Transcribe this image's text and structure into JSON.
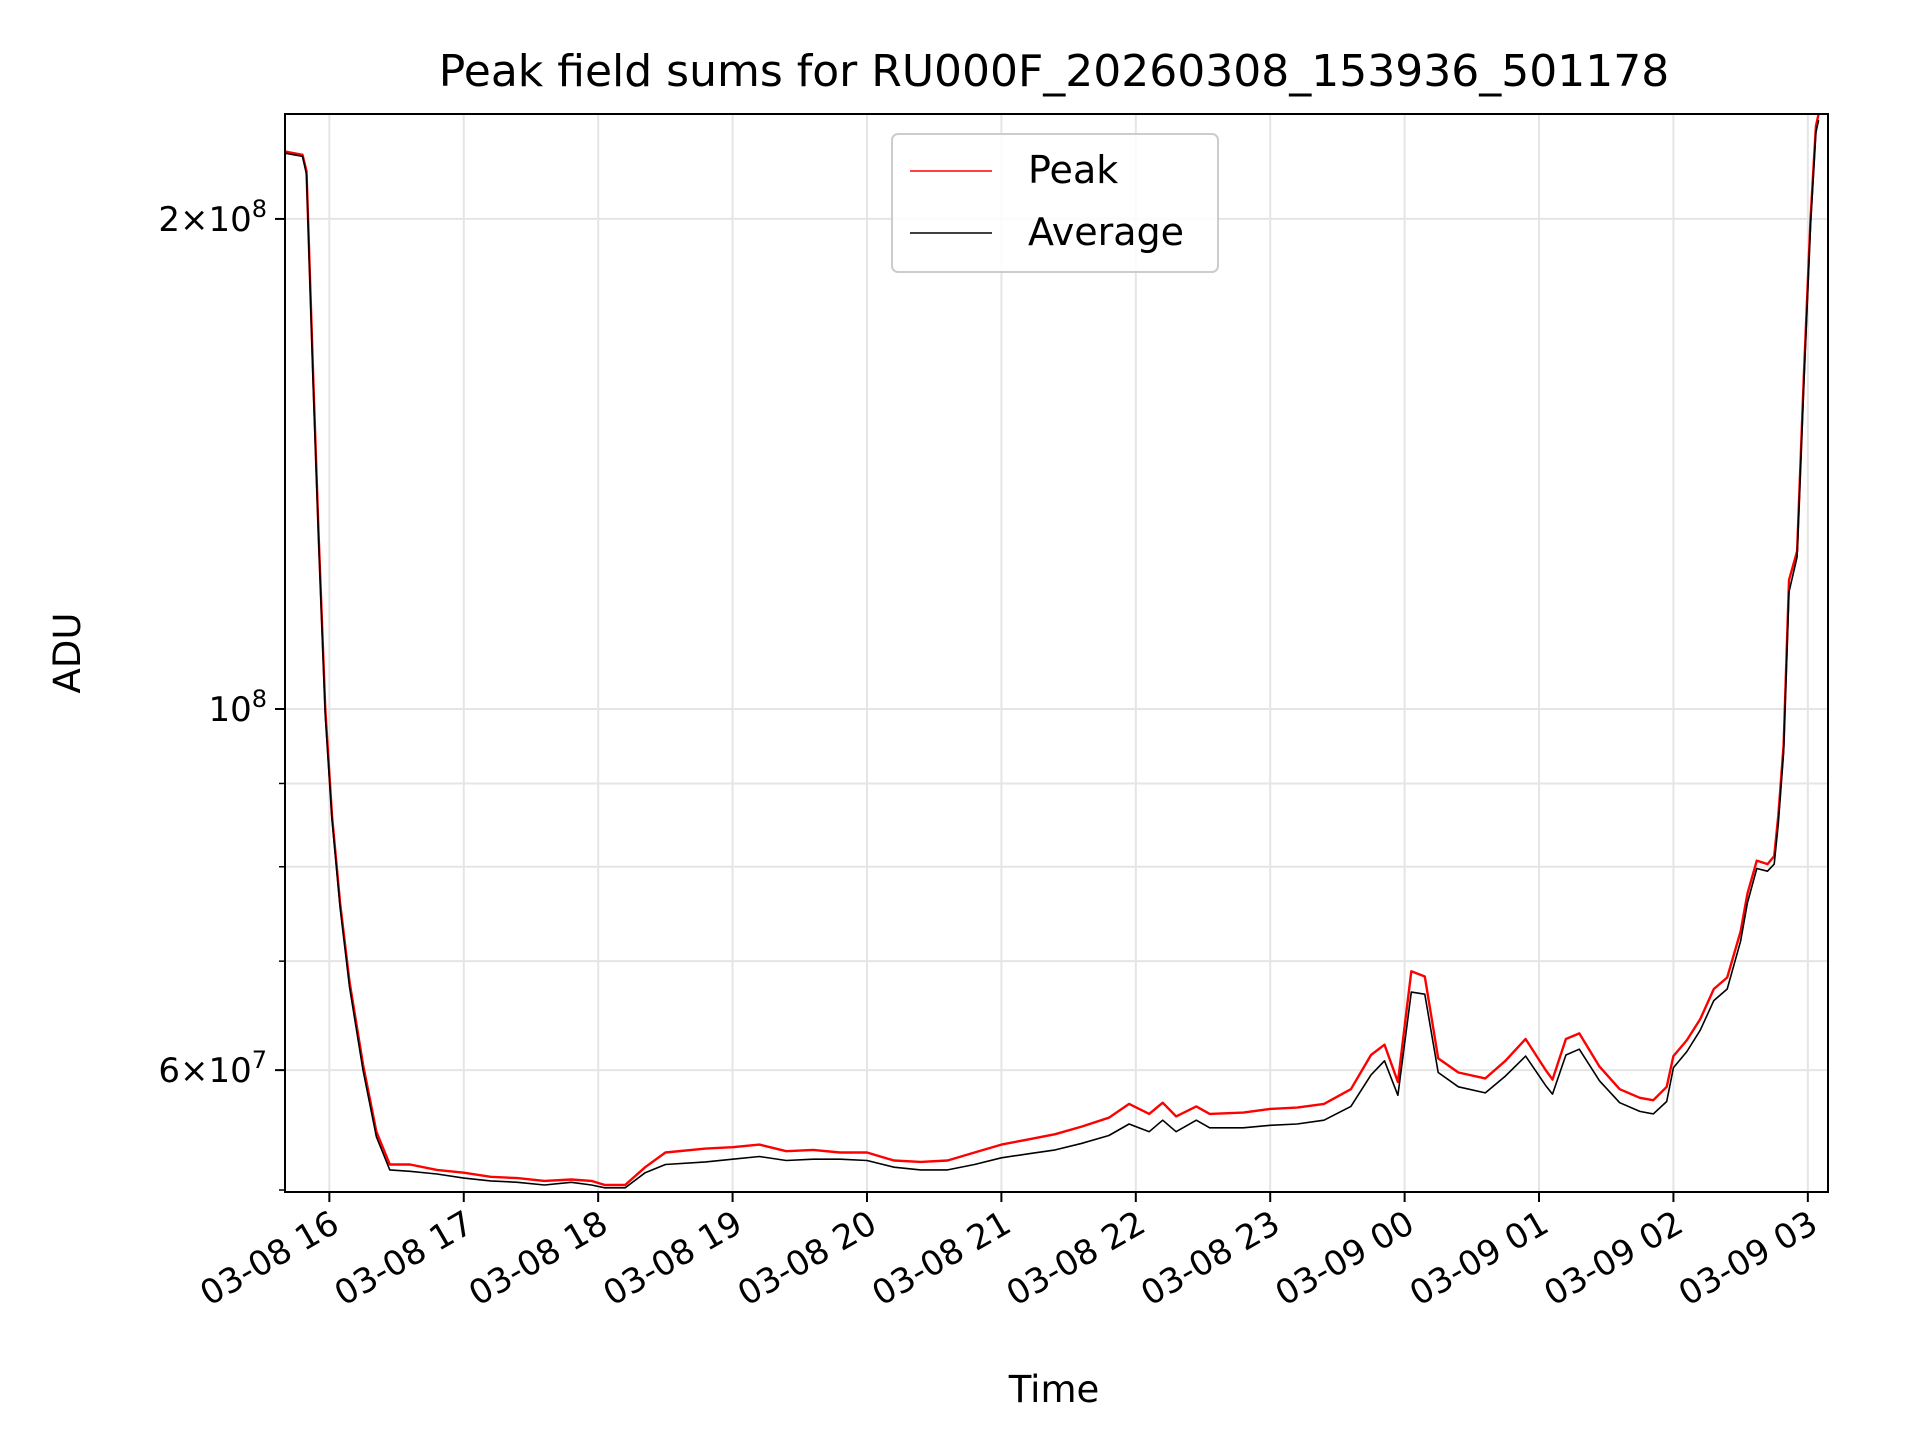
{
  "chart_data": {
    "type": "line",
    "title": "Peak field sums for RU000F_20260308_153936_501178",
    "xlabel": "Time",
    "ylabel": "ADU",
    "yscale": "log",
    "ylim": [
      50500000,
      232000000
    ],
    "xlim_hours": [
      15.67,
      27.15
    ],
    "grid": true,
    "legend_position": "upper center",
    "colors": {
      "peak": "#ff0000",
      "average": "#000000",
      "grid": "#e5e5e5"
    },
    "x_ticks": [
      {
        "hour": 16,
        "label": "03-08 16"
      },
      {
        "hour": 17,
        "label": "03-08 17"
      },
      {
        "hour": 18,
        "label": "03-08 18"
      },
      {
        "hour": 19,
        "label": "03-08 19"
      },
      {
        "hour": 20,
        "label": "03-08 20"
      },
      {
        "hour": 21,
        "label": "03-08 21"
      },
      {
        "hour": 22,
        "label": "03-08 22"
      },
      {
        "hour": 23,
        "label": "03-08 23"
      },
      {
        "hour": 24,
        "label": "03-09 00"
      },
      {
        "hour": 25,
        "label": "03-09 01"
      },
      {
        "hour": 26,
        "label": "03-09 02"
      },
      {
        "hour": 27,
        "label": "03-09 03"
      }
    ],
    "y_major_ticks": [
      {
        "value": 200000000,
        "mantissa": "2",
        "exp": "8"
      },
      {
        "value": 100000000,
        "mantissa": "",
        "exp": "8"
      },
      {
        "value": 60000000,
        "mantissa": "6",
        "exp": "7"
      }
    ],
    "y_minor_ticks": [
      70000000,
      80000000,
      90000000
    ],
    "series": [
      {
        "name": "Peak",
        "color": "#ff0000",
        "points": [
          [
            15.67,
            220000000
          ],
          [
            15.8,
            219000000
          ],
          [
            15.83,
            214000000
          ],
          [
            15.88,
            160000000
          ],
          [
            15.92,
            128000000
          ],
          [
            15.97,
            100000000
          ],
          [
            16.02,
            86000000
          ],
          [
            16.08,
            76000000
          ],
          [
            16.15,
            68000000
          ],
          [
            16.25,
            60500000
          ],
          [
            16.35,
            55000000
          ],
          [
            16.45,
            52500000
          ],
          [
            16.6,
            52500000
          ],
          [
            16.8,
            52100000
          ],
          [
            17.0,
            51900000
          ],
          [
            17.2,
            51600000
          ],
          [
            17.4,
            51500000
          ],
          [
            17.6,
            51300000
          ],
          [
            17.8,
            51400000
          ],
          [
            17.95,
            51300000
          ],
          [
            18.05,
            51000000
          ],
          [
            18.2,
            51000000
          ],
          [
            18.35,
            52300000
          ],
          [
            18.5,
            53400000
          ],
          [
            18.8,
            53700000
          ],
          [
            19.0,
            53800000
          ],
          [
            19.2,
            54000000
          ],
          [
            19.4,
            53500000
          ],
          [
            19.6,
            53600000
          ],
          [
            19.8,
            53400000
          ],
          [
            20.0,
            53400000
          ],
          [
            20.2,
            52800000
          ],
          [
            20.4,
            52700000
          ],
          [
            20.6,
            52800000
          ],
          [
            20.8,
            53400000
          ],
          [
            21.0,
            54000000
          ],
          [
            21.2,
            54400000
          ],
          [
            21.4,
            54800000
          ],
          [
            21.6,
            55400000
          ],
          [
            21.8,
            56100000
          ],
          [
            21.95,
            57200000
          ],
          [
            22.1,
            56400000
          ],
          [
            22.2,
            57300000
          ],
          [
            22.3,
            56200000
          ],
          [
            22.45,
            57000000
          ],
          [
            22.55,
            56400000
          ],
          [
            22.8,
            56500000
          ],
          [
            23.0,
            56800000
          ],
          [
            23.2,
            56900000
          ],
          [
            23.4,
            57200000
          ],
          [
            23.6,
            58400000
          ],
          [
            23.75,
            61300000
          ],
          [
            23.85,
            62200000
          ],
          [
            23.95,
            59000000
          ],
          [
            24.05,
            69000000
          ],
          [
            24.15,
            68500000
          ],
          [
            24.25,
            61000000
          ],
          [
            24.4,
            59800000
          ],
          [
            24.6,
            59300000
          ],
          [
            24.75,
            60800000
          ],
          [
            24.9,
            62700000
          ],
          [
            25.05,
            60000000
          ],
          [
            25.1,
            59200000
          ],
          [
            25.2,
            62700000
          ],
          [
            25.3,
            63200000
          ],
          [
            25.45,
            60300000
          ],
          [
            25.6,
            58400000
          ],
          [
            25.75,
            57700000
          ],
          [
            25.85,
            57500000
          ],
          [
            25.95,
            58600000
          ],
          [
            26.0,
            61200000
          ],
          [
            26.1,
            62600000
          ],
          [
            26.2,
            64500000
          ],
          [
            26.3,
            67300000
          ],
          [
            26.4,
            68400000
          ],
          [
            26.5,
            73000000
          ],
          [
            26.55,
            77000000
          ],
          [
            26.62,
            80700000
          ],
          [
            26.7,
            80300000
          ],
          [
            26.75,
            81200000
          ],
          [
            26.78,
            86000000
          ],
          [
            26.82,
            95000000
          ],
          [
            26.86,
            120000000
          ],
          [
            26.92,
            125000000
          ],
          [
            26.97,
            160000000
          ],
          [
            27.02,
            200000000
          ],
          [
            27.06,
            228000000
          ],
          [
            27.08,
            232000000
          ]
        ]
      },
      {
        "name": "Average",
        "color": "#000000",
        "points": [
          [
            15.67,
            219500000
          ],
          [
            15.8,
            218500000
          ],
          [
            15.83,
            213000000
          ],
          [
            15.88,
            158000000
          ],
          [
            15.92,
            127000000
          ],
          [
            15.97,
            99000000
          ],
          [
            16.02,
            85500000
          ],
          [
            16.08,
            75500000
          ],
          [
            16.15,
            67500000
          ],
          [
            16.25,
            60000000
          ],
          [
            16.35,
            54600000
          ],
          [
            16.45,
            52100000
          ],
          [
            16.6,
            52000000
          ],
          [
            16.8,
            51800000
          ],
          [
            17.0,
            51500000
          ],
          [
            17.2,
            51300000
          ],
          [
            17.4,
            51200000
          ],
          [
            17.6,
            51000000
          ],
          [
            17.8,
            51200000
          ],
          [
            17.95,
            51000000
          ],
          [
            18.05,
            50800000
          ],
          [
            18.2,
            50800000
          ],
          [
            18.35,
            51900000
          ],
          [
            18.5,
            52500000
          ],
          [
            18.8,
            52700000
          ],
          [
            19.0,
            52900000
          ],
          [
            19.2,
            53100000
          ],
          [
            19.4,
            52800000
          ],
          [
            19.6,
            52900000
          ],
          [
            19.8,
            52900000
          ],
          [
            20.0,
            52800000
          ],
          [
            20.2,
            52300000
          ],
          [
            20.4,
            52100000
          ],
          [
            20.6,
            52100000
          ],
          [
            20.8,
            52500000
          ],
          [
            21.0,
            53000000
          ],
          [
            21.2,
            53300000
          ],
          [
            21.4,
            53600000
          ],
          [
            21.6,
            54100000
          ],
          [
            21.8,
            54700000
          ],
          [
            21.95,
            55600000
          ],
          [
            22.1,
            55000000
          ],
          [
            22.2,
            55900000
          ],
          [
            22.3,
            55000000
          ],
          [
            22.45,
            55900000
          ],
          [
            22.55,
            55300000
          ],
          [
            22.8,
            55300000
          ],
          [
            23.0,
            55500000
          ],
          [
            23.2,
            55600000
          ],
          [
            23.4,
            55900000
          ],
          [
            23.6,
            57000000
          ],
          [
            23.75,
            59600000
          ],
          [
            23.85,
            60800000
          ],
          [
            23.95,
            57900000
          ],
          [
            24.05,
            67000000
          ],
          [
            24.15,
            66800000
          ],
          [
            24.25,
            59800000
          ],
          [
            24.4,
            58600000
          ],
          [
            24.6,
            58100000
          ],
          [
            24.75,
            59500000
          ],
          [
            24.9,
            61200000
          ],
          [
            25.05,
            58700000
          ],
          [
            25.1,
            58000000
          ],
          [
            25.2,
            61300000
          ],
          [
            25.3,
            61800000
          ],
          [
            25.45,
            59100000
          ],
          [
            25.6,
            57300000
          ],
          [
            25.75,
            56600000
          ],
          [
            25.85,
            56400000
          ],
          [
            25.95,
            57400000
          ],
          [
            26.0,
            60200000
          ],
          [
            26.1,
            61600000
          ],
          [
            26.2,
            63500000
          ],
          [
            26.3,
            66200000
          ],
          [
            26.4,
            67300000
          ],
          [
            26.5,
            72000000
          ],
          [
            26.55,
            76000000
          ],
          [
            26.62,
            79800000
          ],
          [
            26.7,
            79500000
          ],
          [
            26.75,
            80300000
          ],
          [
            26.78,
            85000000
          ],
          [
            26.82,
            94000000
          ],
          [
            26.86,
            118000000
          ],
          [
            26.92,
            124000000
          ],
          [
            26.97,
            158000000
          ],
          [
            27.02,
            198000000
          ],
          [
            27.06,
            226000000
          ],
          [
            27.08,
            230000000
          ]
        ]
      }
    ]
  }
}
